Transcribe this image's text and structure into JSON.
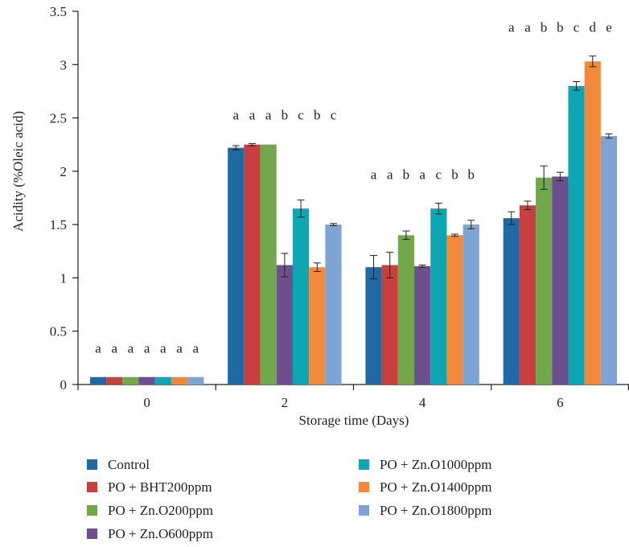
{
  "chart_data": {
    "type": "bar",
    "title": "",
    "xlabel": "Storage time (Days)",
    "ylabel": "Acidity (%Oleic acid)",
    "ylim": [
      0,
      3.5
    ],
    "yticks": [
      "0",
      "0.5",
      "1",
      "1.5",
      "2",
      "2.5",
      "3",
      "3.5"
    ],
    "categories": [
      "0",
      "2",
      "4",
      "6"
    ],
    "grid": false,
    "legend_position": "bottom",
    "series": [
      {
        "name": "Control",
        "color": "#2169a4",
        "values": [
          0.07,
          2.22,
          1.1,
          1.56
        ],
        "errors": [
          0.0,
          0.02,
          0.11,
          0.06
        ]
      },
      {
        "name": "PO + BHT200ppm",
        "color": "#c7403f",
        "values": [
          0.07,
          2.25,
          1.12,
          1.68
        ],
        "errors": [
          0.0,
          0.01,
          0.12,
          0.04
        ]
      },
      {
        "name": "PO + Zn.O200ppm",
        "color": "#72a84b",
        "values": [
          0.07,
          2.25,
          1.4,
          1.94
        ],
        "errors": [
          0.0,
          0.0,
          0.04,
          0.11
        ]
      },
      {
        "name": "PO + Zn.O600ppm",
        "color": "#6d4f8d",
        "values": [
          0.07,
          1.12,
          1.11,
          1.95
        ],
        "errors": [
          0.0,
          0.11,
          0.01,
          0.04
        ]
      },
      {
        "name": "PO + Zn.O1000ppm",
        "color": "#0ea6b2",
        "values": [
          0.07,
          1.65,
          1.65,
          2.8
        ],
        "errors": [
          0.0,
          0.08,
          0.05,
          0.04
        ]
      },
      {
        "name": "PO + Zn.O1400ppm",
        "color": "#f2893a",
        "values": [
          0.07,
          1.1,
          1.4,
          3.03
        ],
        "errors": [
          0.0,
          0.04,
          0.01,
          0.05
        ]
      },
      {
        "name": "PO + Zn.O1800ppm",
        "color": "#7ea4d3",
        "values": [
          0.07,
          1.5,
          1.5,
          2.33
        ],
        "errors": [
          0.0,
          0.01,
          0.04,
          0.02
        ]
      }
    ],
    "annotations": [
      [
        "a",
        "a",
        "a",
        "a",
        "a",
        "a",
        "a"
      ],
      [
        "a",
        "a",
        "a",
        "b",
        "c",
        "b",
        "c"
      ],
      [
        "a",
        "a",
        "b",
        "a",
        "c",
        "b",
        "b"
      ],
      [
        "a",
        "a",
        "b",
        "b",
        "c",
        "d",
        "e"
      ]
    ]
  }
}
